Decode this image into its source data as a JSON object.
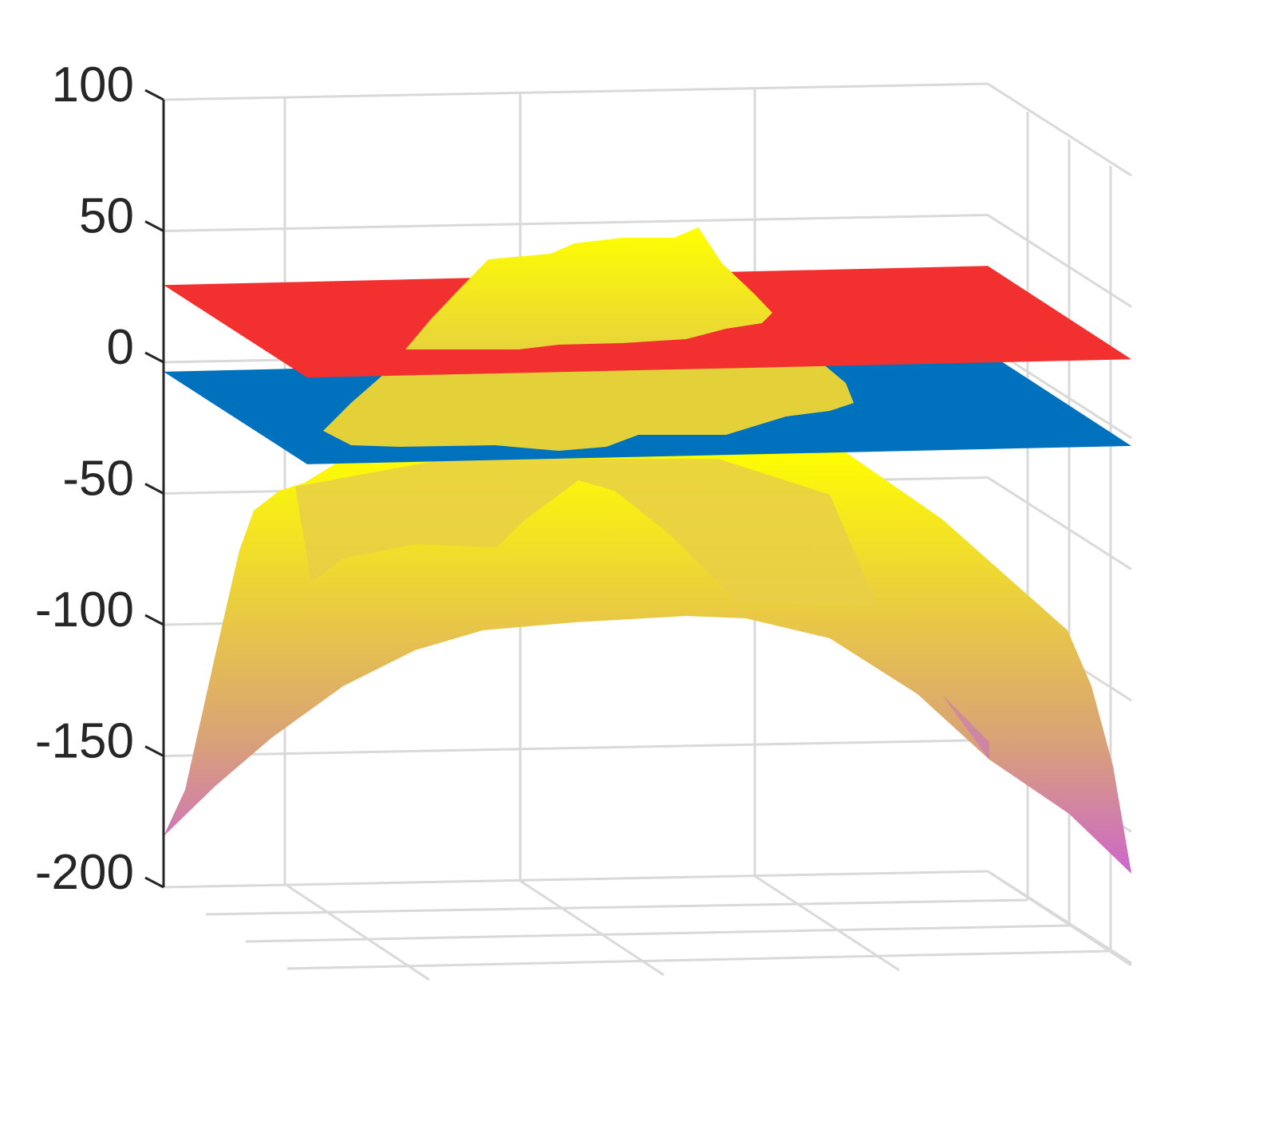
{
  "chart_data": {
    "type": "surface3d",
    "title": "",
    "xlabel": "",
    "ylabel": "",
    "zlabel": "",
    "zlim": [
      -200,
      100
    ],
    "z_ticks": [
      100,
      50,
      0,
      -50,
      -100,
      -150,
      -200
    ],
    "z_tick_labels": [
      "100",
      "50",
      "0",
      "-50",
      "-100",
      "-150",
      "-200"
    ],
    "grid": true,
    "legend": "none",
    "series": [
      {
        "kind": "plane",
        "z": 30,
        "color": "#f23030"
      },
      {
        "kind": "plane",
        "z": -3,
        "color": "#0072bd"
      },
      {
        "kind": "surface",
        "z_peak": 48,
        "z_edge_min": -185,
        "colormap_top": "#ffff00",
        "colormap_bottom": "#cc66cc"
      }
    ]
  }
}
